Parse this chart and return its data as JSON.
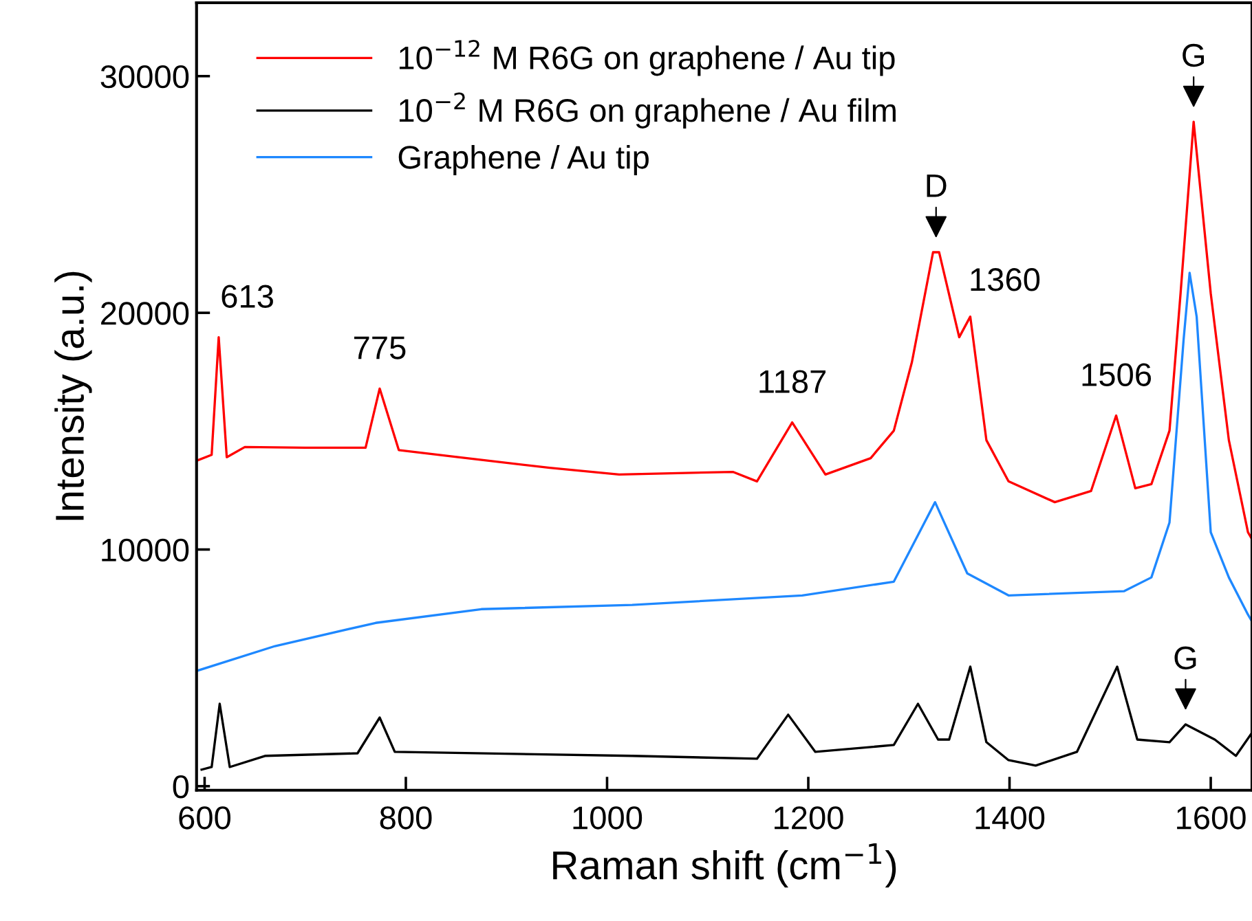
{
  "chart_data": {
    "type": "line",
    "xlabel": "Raman shift (cm$^{−1}$)",
    "ylabel": "Intensity (a.u.)",
    "xlim": [
      592,
      1641
    ],
    "ylim": [
      -170,
      33100
    ],
    "xticks": [
      600,
      800,
      1000,
      1200,
      1400,
      1600
    ],
    "yticks": [
      0,
      10000,
      20000,
      30000
    ],
    "grid": false,
    "legend": "top left",
    "line_style": "solid",
    "marker": "none",
    "series": [
      {
        "name": "10$^{−12}$ M R6G on graphene / Au tip",
        "color": "#ff0000",
        "x": [
          592,
          607,
          614,
          622,
          640,
          700,
          760,
          774,
          793,
          852,
          943,
          1012,
          1125,
          1149,
          1184,
          1217,
          1262,
          1285,
          1303,
          1324,
          1330,
          1350,
          1361,
          1377,
          1399,
          1445,
          1481,
          1506,
          1525,
          1541,
          1559,
          1570,
          1583,
          1600,
          1618,
          1637,
          1641
        ],
        "values": [
          13750,
          14000,
          18970,
          13900,
          14330,
          14300,
          14300,
          16800,
          14200,
          13900,
          13450,
          13170,
          13280,
          12880,
          15370,
          13170,
          13860,
          15020,
          17920,
          22560,
          22560,
          18970,
          19840,
          14620,
          12880,
          12000,
          12470,
          15660,
          12590,
          12760,
          15020,
          20820,
          28070,
          20820,
          14620,
          10730,
          10440
        ]
      },
      {
        "name": "10$^{−2}$ M R6G on graphene / Au film",
        "color": "#000000",
        "x": [
          597,
          607,
          615,
          625,
          660,
          752,
          774,
          789,
          1025,
          1149,
          1180,
          1207,
          1285,
          1309,
          1329,
          1340,
          1361,
          1377,
          1399,
          1426,
          1467,
          1507,
          1527,
          1559,
          1575,
          1604,
          1625,
          1641
        ],
        "values": [
          700,
          810,
          3480,
          810,
          1280,
          1390,
          2900,
          1450,
          1280,
          1160,
          3020,
          1450,
          1740,
          3480,
          1970,
          1970,
          5050,
          1860,
          1100,
          870,
          1450,
          5050,
          1970,
          1860,
          2610,
          1970,
          1280,
          2260
        ]
      },
      {
        "name": "Graphene / Au tip",
        "color": "#1e88ff",
        "x": [
          592,
          670,
          770,
          875,
          1025,
          1194,
          1285,
          1326,
          1358,
          1399,
          1514,
          1541,
          1559,
          1573,
          1579,
          1586,
          1600,
          1618,
          1637,
          1641
        ],
        "values": [
          4870,
          5920,
          6900,
          7480,
          7660,
          8060,
          8640,
          12000,
          8990,
          8060,
          8240,
          8820,
          11140,
          18850,
          21690,
          19840,
          10730,
          8820,
          7250,
          6960
        ]
      }
    ],
    "annotations": [
      {
        "text": "613",
        "x": 614,
        "y": 18970
      },
      {
        "text": "775",
        "x": 774,
        "y": 16800
      },
      {
        "text": "1187",
        "x": 1184,
        "y": 15370
      },
      {
        "text": "1360",
        "x": 1361,
        "y": 19840
      },
      {
        "text": "1506",
        "x": 1506,
        "y": 15660
      },
      {
        "text": "D",
        "x": 1327,
        "y": 22560
      },
      {
        "text": "G",
        "x": 1583,
        "y": 28070
      },
      {
        "text": "G",
        "x": 1575,
        "y": 2610
      }
    ]
  }
}
